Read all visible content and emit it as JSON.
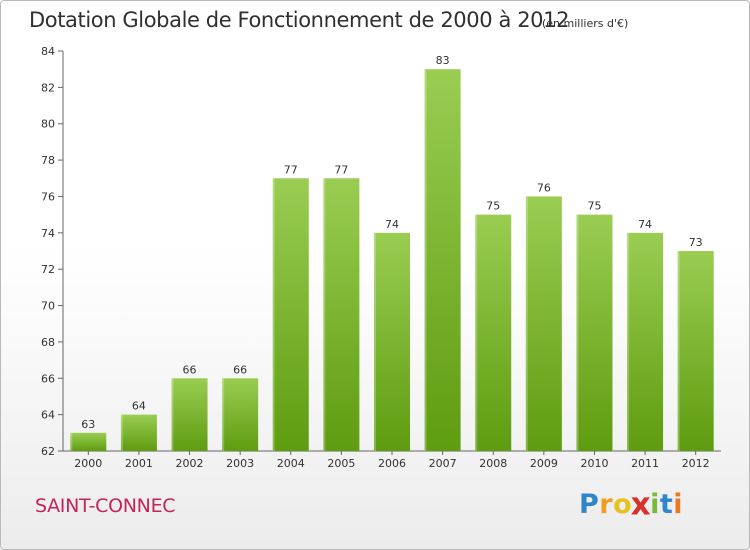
{
  "chart_data": {
    "type": "bar",
    "title": "Dotation Globale de Fonctionnement de 2000 à 2012",
    "subtitle": "(en milliers d'€)",
    "xlabel": "",
    "ylabel": "",
    "categories": [
      "2000",
      "2001",
      "2002",
      "2003",
      "2004",
      "2005",
      "2006",
      "2007",
      "2008",
      "2009",
      "2010",
      "2011",
      "2012"
    ],
    "values": [
      63,
      64,
      66,
      66,
      77,
      77,
      74,
      83,
      75,
      76,
      75,
      74,
      73
    ],
    "ylim": [
      62,
      84
    ],
    "yticks": [
      62,
      64,
      66,
      68,
      70,
      72,
      74,
      76,
      78,
      80,
      82,
      84
    ],
    "grid": false,
    "legend": "none"
  },
  "footer": {
    "commune": "SAINT-CONNEC",
    "logo_letters": [
      "P",
      "r",
      "o",
      "x",
      "i",
      "t",
      "i"
    ]
  },
  "colors": {
    "bar_top": "#9acd52",
    "bar_bottom": "#5e9c10",
    "commune": "#c5245a",
    "logo": [
      "#2e86c8",
      "#f0a020",
      "#e8c020",
      "#d8302a",
      "#7ab83a",
      "#2e86c8",
      "#e87820"
    ]
  }
}
